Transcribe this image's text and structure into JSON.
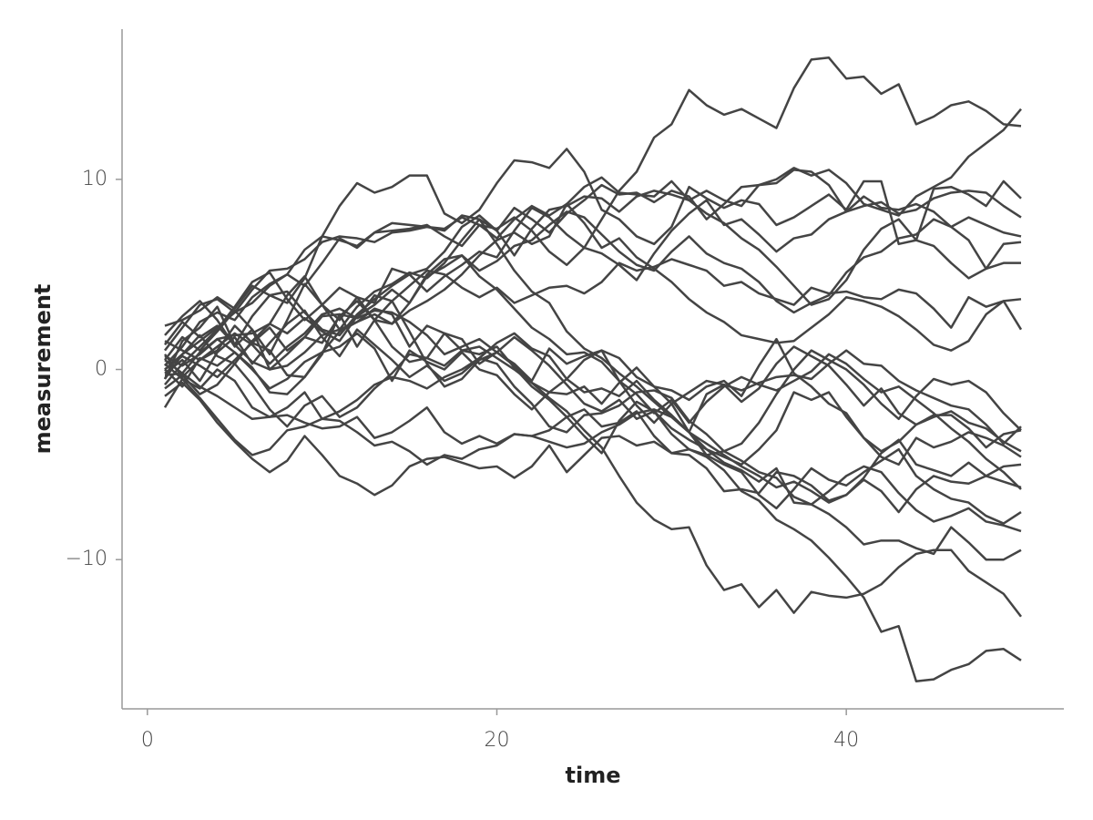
{
  "chart_data": {
    "type": "line",
    "x_label": "time",
    "y_label": "measurement",
    "xlim": [
      -1.45,
      52.45
    ],
    "ylim": [
      -17.85,
      17.9
    ],
    "xticks": [
      0,
      20,
      40
    ],
    "yticks": [
      {
        "value": -10,
        "label": "−10"
      },
      0,
      10
    ],
    "grid": false,
    "x": [
      1,
      2,
      3,
      4,
      5,
      6,
      7,
      8,
      9,
      10,
      11,
      12,
      13,
      14,
      15,
      16,
      17,
      18,
      19,
      20,
      21,
      22,
      23,
      24,
      25,
      26,
      27,
      28,
      29,
      30,
      31,
      32,
      33,
      34,
      35,
      36,
      37,
      38,
      39,
      40,
      41,
      42,
      43,
      44,
      45,
      46,
      47,
      48,
      49,
      50
    ],
    "series": [
      {
        "color": "#444444",
        "values": [
          0,
          0.8,
          1.5,
          2.2,
          3.0,
          3.5,
          4.4,
          5.0,
          6.3,
          7.0,
          6.8,
          6.5,
          7.2,
          7.3,
          7.4,
          7.6,
          7.0,
          6.5,
          7.6,
          7.4,
          8.0,
          7.3,
          6.2,
          5.5,
          6.4,
          7.9,
          9.4,
          10.4,
          12.2,
          12.9,
          14.7,
          13.9,
          13.4,
          13.7,
          13.2,
          12.7,
          14.8,
          16.3,
          16.4,
          15.3,
          15.4,
          14.5,
          15.0,
          12.9,
          13.3,
          13.9,
          14.1,
          13.6,
          12.9,
          12.8
        ]
      },
      {
        "color": "#444444",
        "values": [
          1.0,
          2.2,
          3.4,
          3.7,
          3.0,
          4.2,
          5.2,
          5.3,
          5.8,
          6.7,
          7.0,
          6.9,
          6.7,
          7.2,
          7.3,
          7.5,
          7.4,
          8.0,
          7.6,
          6.9,
          7.9,
          8.6,
          8.1,
          8.7,
          9.6,
          10.1,
          9.3,
          9.2,
          9.1,
          9.9,
          8.9,
          9.4,
          8.9,
          8.6,
          9.7,
          10.0,
          10.6,
          10.2,
          10.5,
          9.8,
          8.7,
          8.4,
          8.1,
          9.1,
          9.6,
          10.1,
          11.2,
          11.9,
          12.6,
          13.7
        ]
      },
      {
        "color": "#444444",
        "values": [
          -0.5,
          1.5,
          2.2,
          3.3,
          1.3,
          2.8,
          3.9,
          3.5,
          4.8,
          7.0,
          8.6,
          9.8,
          9.3,
          9.6,
          10.2,
          10.2,
          8.2,
          7.7,
          8.4,
          9.8,
          11.0,
          10.9,
          10.6,
          11.6,
          10.4,
          8.4,
          7.9,
          7.0,
          6.6,
          7.5,
          9.6,
          9.0,
          8.5,
          8.9,
          8.7,
          7.6,
          8.0,
          8.6,
          9.2,
          8.4,
          9.9,
          9.9,
          6.6,
          6.8,
          9.5,
          9.6,
          9.2,
          8.6,
          9.9,
          9.0
        ]
      },
      {
        "color": "#444444",
        "values": [
          0.2,
          1.2,
          2.5,
          3.0,
          2.6,
          3.8,
          4.5,
          5.0,
          4.4,
          5.6,
          6.9,
          6.4,
          7.2,
          7.7,
          7.6,
          7.5,
          7.3,
          8.1,
          7.9,
          7.3,
          8.5,
          7.9,
          7.2,
          8.2,
          8.9,
          9.7,
          9.2,
          9.3,
          8.8,
          9.4,
          9.1,
          7.9,
          8.7,
          9.6,
          9.7,
          9.8,
          10.5,
          10.4,
          9.7,
          8.3,
          8.6,
          8.8,
          8.2,
          8.4,
          9.0,
          9.3,
          9.4,
          9.3,
          8.6,
          8.0
        ]
      },
      {
        "color": "#444444",
        "values": [
          0.5,
          1.7,
          1.0,
          2.0,
          3.1,
          2.1,
          0.8,
          2.6,
          4.5,
          3.4,
          2.6,
          3.8,
          3.5,
          5.3,
          5.0,
          4.1,
          4.9,
          5.5,
          6.2,
          5.9,
          7.3,
          8.5,
          8.0,
          7.1,
          6.4,
          6.1,
          5.5,
          4.7,
          6.1,
          7.3,
          8.2,
          8.9,
          7.6,
          7.9,
          7.1,
          6.2,
          6.9,
          7.1,
          7.9,
          8.3,
          9.1,
          8.5,
          8.4,
          8.7,
          8.3,
          7.5,
          8.0,
          7.6,
          7.2,
          7.0
        ]
      },
      {
        "color": "#444444",
        "values": [
          2.3,
          2.6,
          3.1,
          3.8,
          3.2,
          4.4,
          3.9,
          4.1,
          3.0,
          2.1,
          1.8,
          2.9,
          3.7,
          4.4,
          5.0,
          5.3,
          6.2,
          7.5,
          8.1,
          7.3,
          6.0,
          7.4,
          8.4,
          8.6,
          9.1,
          9.0,
          8.3,
          9.1,
          9.4,
          9.2,
          8.9,
          8.2,
          7.7,
          6.9,
          6.3,
          5.4,
          4.4,
          3.4,
          3.7,
          4.7,
          6.3,
          7.4,
          7.9,
          6.8,
          6.5,
          5.6,
          4.8,
          5.3,
          6.6,
          6.7
        ]
      },
      {
        "color": "#444444",
        "values": [
          -0.5,
          0.8,
          1.8,
          0.7,
          0.3,
          1.5,
          2.4,
          1.9,
          2.7,
          2.0,
          1.5,
          2.8,
          3.4,
          4.2,
          3.5,
          4.9,
          5.4,
          6.0,
          5.2,
          5.7,
          6.5,
          6.8,
          7.6,
          8.3,
          8.0,
          7.1,
          6.2,
          5.5,
          5.2,
          6.2,
          7.0,
          6.1,
          5.6,
          5.3,
          4.6,
          3.6,
          3.0,
          3.5,
          3.9,
          5.1,
          5.9,
          6.2,
          6.9,
          7.1,
          7.9,
          7.5,
          6.8,
          5.3,
          5.6,
          5.6
        ]
      },
      {
        "color": "#444444",
        "values": [
          1.5,
          1.0,
          0.5,
          1.2,
          1.9,
          1.3,
          0.3,
          1.2,
          1.9,
          2.9,
          3.2,
          2.7,
          3.9,
          3.6,
          4.4,
          5.2,
          5.0,
          4.3,
          3.8,
          4.3,
          3.5,
          3.9,
          4.3,
          4.4,
          4.0,
          4.6,
          5.6,
          5.2,
          5.4,
          5.8,
          5.5,
          5.2,
          4.4,
          4.6,
          4.0,
          3.7,
          3.4,
          4.3,
          4.0,
          4.1,
          3.8,
          3.7,
          4.2,
          4.0,
          3.2,
          2.2,
          3.8,
          3.3,
          3.6,
          3.7
        ]
      },
      {
        "color": "#444444",
        "values": [
          1.8,
          2.8,
          3.6,
          2.6,
          1.2,
          2.1,
          0.0,
          0.2,
          0.9,
          1.8,
          2.1,
          2.5,
          2.9,
          2.4,
          3.1,
          3.6,
          4.2,
          5.0,
          6.0,
          6.8,
          7.2,
          6.6,
          7.0,
          8.7,
          7.7,
          6.4,
          6.9,
          5.9,
          5.3,
          4.6,
          3.7,
          3.0,
          2.5,
          1.8,
          1.6,
          1.4,
          1.5,
          2.2,
          2.9,
          3.8,
          3.6,
          3.3,
          2.8,
          2.1,
          1.3,
          1.0,
          1.5,
          2.9,
          3.6,
          2.1
        ]
      },
      {
        "color": "#444444",
        "values": [
          -0.2,
          0.5,
          -0.6,
          0.9,
          1.7,
          0.3,
          1.4,
          2.4,
          3.1,
          1.7,
          0.7,
          2.1,
          1.3,
          0.5,
          -0.4,
          0.2,
          -0.6,
          -0.2,
          0.6,
          1.4,
          1.9,
          1.1,
          0.7,
          -0.5,
          0.5,
          1.0,
          0.6,
          -0.4,
          -0.9,
          -1.8,
          -1.2,
          -0.6,
          -0.8,
          -1.1,
          -0.7,
          -0.4,
          -0.3,
          -0.5,
          0.3,
          1.0,
          0.3,
          0.2,
          -0.6,
          -1.1,
          -1.5,
          -1.9,
          -2.1,
          -2.9,
          -3.9,
          -3.0
        ]
      },
      {
        "color": "#444444",
        "values": [
          0.0,
          -0.9,
          0.6,
          0.2,
          0.9,
          0.1,
          -1.2,
          -1.3,
          -0.4,
          0.8,
          2.9,
          1.2,
          2.6,
          3.6,
          2.0,
          0.3,
          -0.9,
          -0.5,
          0.5,
          0.9,
          0.3,
          -0.6,
          1.1,
          0.3,
          0.7,
          1.0,
          -0.6,
          -1.9,
          -2.8,
          -1.8,
          -3.3,
          -1.3,
          -0.8,
          -1.7,
          -1.0,
          0.3,
          1.2,
          0.7,
          0.2,
          -0.8,
          -1.9,
          -1.0,
          -2.3,
          -2.9,
          -2.4,
          -2.4,
          -3.1,
          -4.1,
          -3.4,
          -3.2
        ]
      },
      {
        "color": "#444444",
        "values": [
          0.8,
          -0.4,
          0.5,
          1.0,
          2.3,
          1.4,
          1.0,
          -0.3,
          -0.4,
          0.9,
          1.2,
          1.9,
          1.1,
          -0.6,
          1.0,
          0.4,
          0.0,
          0.9,
          0.0,
          -0.3,
          -1.3,
          -2.1,
          -1.2,
          -1.3,
          -0.9,
          -1.8,
          -0.7,
          0.1,
          -0.9,
          -1.1,
          -1.6,
          -0.9,
          -0.6,
          -1.4,
          0.2,
          1.6,
          -0.2,
          -0.9,
          -1.8,
          -2.3,
          -3.6,
          -4.6,
          -5.0,
          -3.6,
          -4.1,
          -3.8,
          -3.3,
          -3.6,
          -4.0,
          -4.6
        ]
      },
      {
        "color": "#444444",
        "values": [
          -1.0,
          -0.3,
          -1.3,
          -0.8,
          0.3,
          -0.8,
          -2.1,
          -3.0,
          -1.9,
          -1.4,
          -2.5,
          -2.0,
          -1.0,
          -0.2,
          0.8,
          0.6,
          0.2,
          1.0,
          1.2,
          0.6,
          0.0,
          -0.7,
          -1.2,
          -0.5,
          -1.2,
          -1.0,
          -1.4,
          -0.6,
          -1.6,
          -2.4,
          -3.3,
          -3.9,
          -4.5,
          -5.1,
          -5.6,
          -6.2,
          -5.9,
          -6.4,
          -7.0,
          -6.6,
          -5.7,
          -4.4,
          -3.7,
          -5.0,
          -5.3,
          -5.6,
          -4.9,
          -5.6,
          -5.9,
          -6.2
        ]
      },
      {
        "color": "#444444",
        "values": [
          -0.3,
          -0.2,
          0.9,
          1.6,
          0.9,
          0.0,
          -1.0,
          -0.5,
          0.4,
          0.9,
          2.0,
          2.5,
          3.2,
          2.9,
          1.2,
          2.3,
          1.9,
          1.6,
          0.3,
          0.9,
          1.7,
          1.0,
          0.2,
          -0.8,
          -1.8,
          -2.2,
          -1.6,
          -2.6,
          -2.2,
          -3.4,
          -4.2,
          -4.5,
          -5.0,
          -5.4,
          -6.6,
          -7.3,
          -6.3,
          -5.2,
          -5.8,
          -6.1,
          -5.4,
          -4.8,
          -4.2,
          -5.6,
          -6.3,
          -6.8,
          -7.0,
          -7.7,
          -8.1,
          -7.5
        ]
      },
      {
        "color": "#444444",
        "values": [
          0.3,
          -0.5,
          -1.0,
          0.0,
          -0.6,
          -2.0,
          -2.5,
          -2.4,
          -2.8,
          -3.1,
          -3.0,
          -2.5,
          -3.6,
          -3.3,
          -2.7,
          -2.0,
          -3.3,
          -3.9,
          -3.5,
          -3.9,
          -3.4,
          -3.5,
          -3.2,
          -2.5,
          -3.5,
          -4.4,
          -2.7,
          -1.7,
          -2.2,
          -3.1,
          -3.7,
          -4.2,
          -4.9,
          -5.3,
          -5.9,
          -5.2,
          -7.0,
          -7.1,
          -6.4,
          -5.6,
          -5.1,
          -5.4,
          -6.5,
          -7.4,
          -8.0,
          -7.7,
          -7.3,
          -8.0,
          -8.2,
          -8.5
        ]
      },
      {
        "color": "#444444",
        "values": [
          -2.0,
          -0.5,
          -1.5,
          -2.6,
          -3.7,
          -4.5,
          -4.2,
          -3.2,
          -3.0,
          -2.6,
          -2.7,
          -3.3,
          -4.0,
          -3.8,
          -4.3,
          -5.0,
          -4.5,
          -4.7,
          -4.2,
          -4.0,
          -3.4,
          -3.5,
          -3.8,
          -4.1,
          -3.9,
          -3.3,
          -2.9,
          -2.3,
          -2.1,
          -2.5,
          -3.3,
          -4.5,
          -4.3,
          -4.8,
          -5.4,
          -5.7,
          -6.7,
          -7.1,
          -7.6,
          -8.3,
          -9.2,
          -9.0,
          -9.0,
          -9.4,
          -9.7,
          -8.3,
          -9.1,
          -10.0,
          -10.0,
          -9.5
        ]
      },
      {
        "color": "#444444",
        "values": [
          1.3,
          2.5,
          1.7,
          2.3,
          1.3,
          0.4,
          0.0,
          0.8,
          1.7,
          2.8,
          2.9,
          2.7,
          3.1,
          3.0,
          2.5,
          1.8,
          0.8,
          1.2,
          1.6,
          0.9,
          0.2,
          -0.7,
          -1.5,
          -2.2,
          -3.2,
          -4.1,
          -5.6,
          -7.0,
          -7.9,
          -8.4,
          -8.3,
          -10.3,
          -11.6,
          -11.3,
          -12.5,
          -11.6,
          -12.8,
          -11.7,
          -11.9,
          -12.0,
          -11.8,
          -11.3,
          -10.4,
          -9.7,
          -9.5,
          -9.5,
          -10.6,
          -11.2,
          -11.8,
          -13.0
        ]
      },
      {
        "color": "#444444",
        "values": [
          0.0,
          0.7,
          0.2,
          -0.4,
          0.5,
          1.4,
          2.2,
          1.0,
          1.7,
          1.4,
          2.8,
          3.6,
          2.6,
          1.2,
          0.4,
          0.6,
          1.9,
          1.0,
          0.8,
          1.2,
          0.1,
          -0.9,
          -1.6,
          -2.5,
          -2.1,
          -3.0,
          -2.8,
          -2.2,
          -3.5,
          -4.4,
          -4.2,
          -4.6,
          -5.3,
          -6.4,
          -6.9,
          -7.9,
          -8.4,
          -9.0,
          -9.9,
          -10.9,
          -12.0,
          -13.8,
          -13.5,
          -16.4,
          -16.3,
          -15.8,
          -15.5,
          -14.8,
          -14.7,
          -15.3
        ]
      },
      {
        "color": "#444444",
        "values": [
          -1.4,
          -0.7,
          -1.6,
          -2.8,
          -3.8,
          -4.7,
          -5.4,
          -4.8,
          -3.5,
          -4.5,
          -5.6,
          -6.0,
          -6.6,
          -6.1,
          -5.1,
          -4.7,
          -4.6,
          -4.9,
          -5.2,
          -5.1,
          -5.7,
          -5.1,
          -4.0,
          -5.4,
          -4.5,
          -3.6,
          -3.5,
          -4.0,
          -3.8,
          -4.4,
          -4.5,
          -5.2,
          -6.4,
          -6.3,
          -6.5,
          -5.4,
          -5.6,
          -6.1,
          -6.9,
          -6.6,
          -5.8,
          -6.4,
          -7.5,
          -6.3,
          -5.6,
          -5.9,
          -6.0,
          -5.6,
          -5.1,
          -5.0
        ]
      },
      {
        "color": "#444444",
        "values": [
          0.5,
          -0.2,
          -0.9,
          -1.4,
          -2.0,
          -2.6,
          -2.5,
          -2.0,
          -1.2,
          -2.6,
          -2.2,
          -1.6,
          -0.8,
          -0.4,
          -0.6,
          -1.0,
          -0.4,
          0.0,
          0.6,
          0.3,
          -0.9,
          -1.8,
          -3.0,
          -3.3,
          -2.4,
          -2.3,
          -1.9,
          -1.2,
          -1.1,
          -1.5,
          -2.7,
          -3.4,
          -4.3,
          -3.9,
          -2.8,
          -1.3,
          0.0,
          1.0,
          0.5,
          0.0,
          -0.8,
          -1.8,
          -2.6,
          -1.4,
          -0.5,
          -0.8,
          -0.6,
          -1.2,
          -2.3,
          -3.2
        ]
      },
      {
        "color": "#444444",
        "values": [
          0.7,
          0.2,
          0.8,
          1.6,
          1.8,
          1.9,
          2.4,
          3.9,
          4.9,
          3.4,
          2.1,
          3.3,
          4.1,
          4.5,
          5.1,
          4.8,
          5.6,
          6.8,
          7.9,
          6.6,
          5.2,
          4.1,
          3.5,
          2.0,
          1.1,
          0.6,
          -0.2,
          -0.9,
          -1.7,
          -2.5,
          -3.3,
          -4.2,
          -4.6,
          -5.0,
          -4.2,
          -3.2,
          -1.2,
          -1.6,
          -1.2,
          -2.5,
          -3.6,
          -4.3,
          -3.8,
          -2.9,
          -2.5,
          -2.2,
          -2.8,
          -3.1,
          -3.8,
          -4.3
        ]
      },
      {
        "color": "#444444",
        "values": [
          -0.8,
          0.3,
          1.2,
          2.1,
          3.3,
          4.6,
          5.1,
          3.7,
          2.6,
          3.4,
          4.3,
          3.8,
          2.6,
          2.4,
          3.5,
          5.0,
          5.8,
          6.0,
          4.9,
          4.2,
          3.2,
          2.2,
          1.6,
          0.8,
          0.9,
          0.4,
          -0.6,
          -1.3,
          -2.3,
          -1.6,
          -2.8,
          -1.7,
          -0.9,
          -0.4,
          -0.8,
          -1.1,
          -0.6,
          -0.1,
          0.8,
          0.3,
          -0.5,
          -1.2,
          -0.9,
          -1.6,
          -2.3,
          -3.1,
          -3.8,
          -4.7,
          -5.4,
          -6.3
        ]
      }
    ]
  }
}
